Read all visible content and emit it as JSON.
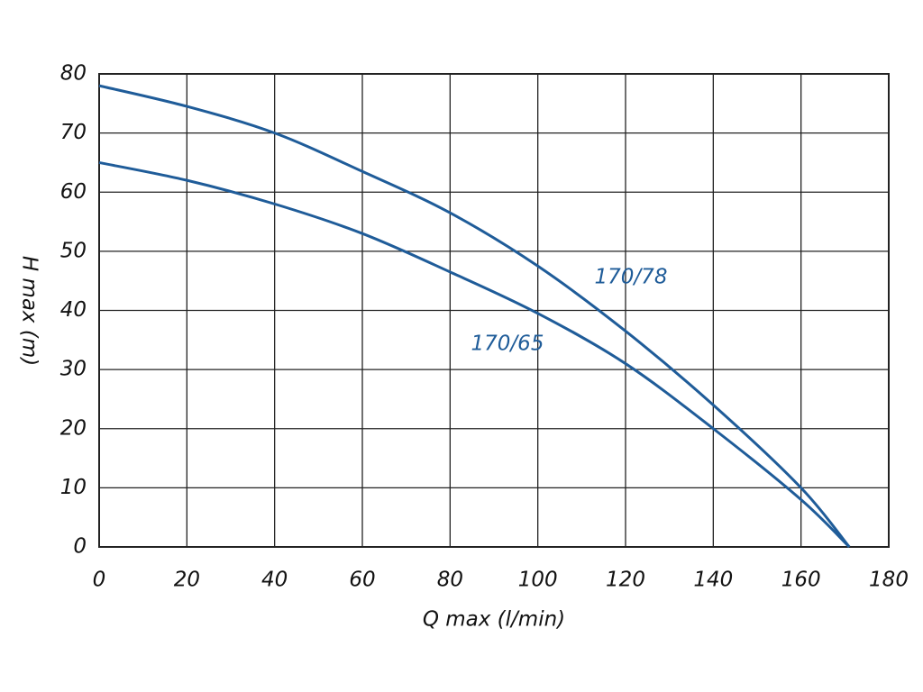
{
  "chart_data": {
    "type": "line",
    "x_label": "Q max (l/min)",
    "y_label": "H max (m)",
    "x": [
      0,
      20,
      40,
      60,
      80,
      100,
      120,
      140,
      160,
      171
    ],
    "series": [
      {
        "name": "170/78",
        "color": "#1f5c99",
        "values": [
          78,
          74.5,
          70,
          63.5,
          56.5,
          47.5,
          36.5,
          24,
          10,
          0
        ]
      },
      {
        "name": "170/65",
        "color": "#1f5c99",
        "values": [
          65,
          62,
          58,
          53,
          46.5,
          39.5,
          31,
          20,
          8,
          0
        ]
      }
    ],
    "xlim": [
      0,
      180
    ],
    "xticks": [
      0,
      20,
      40,
      60,
      80,
      100,
      120,
      140,
      160,
      180
    ],
    "ylim": [
      0,
      80
    ],
    "yticks": [
      0,
      10,
      20,
      30,
      40,
      50,
      60,
      70,
      80
    ],
    "grid": true
  }
}
